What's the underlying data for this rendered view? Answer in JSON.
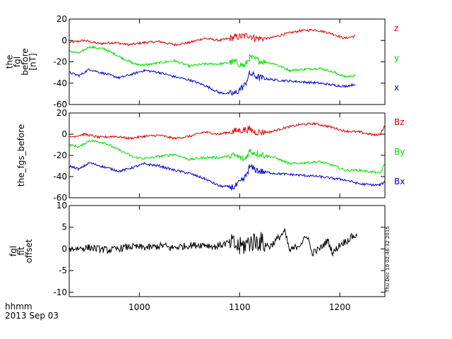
{
  "xaxis": {
    "xlim": [
      930,
      1245
    ],
    "tick_values": [
      1000,
      1100,
      1200
    ],
    "tick_labels": [
      "1000",
      "1100",
      "1200"
    ],
    "label_line1": "hhmm",
    "label_line2": "2013 Sep 03"
  },
  "timestamp": "Thu Dec 10 02:46:32 2015",
  "colors": {
    "x": "#0000cc",
    "y": "#00dd00",
    "z": "#dd0000",
    "black": "#000000"
  },
  "chart_data": [
    {
      "type": "line",
      "ylabel_lines": [
        "the",
        "fgl",
        "before",
        "[nT]"
      ],
      "ylim": [
        -60,
        20
      ],
      "y_ticks": [
        -60,
        -40,
        -20,
        0,
        20
      ],
      "y_tick_labels": [
        "-60",
        "-40",
        "-20",
        "0",
        "20"
      ],
      "series": [
        {
          "name": "z",
          "color": "#dd0000",
          "x": [
            930,
            945,
            960,
            975,
            990,
            1005,
            1020,
            1035,
            1050,
            1065,
            1080,
            1095,
            1105,
            1110,
            1115,
            1130,
            1145,
            1160,
            1175,
            1190,
            1205,
            1215
          ],
          "y": [
            -2,
            0,
            -3,
            -2,
            -4,
            -2,
            -1,
            -4,
            -2,
            2,
            0,
            3,
            4,
            5,
            2,
            2,
            6,
            9,
            10,
            7,
            2,
            4
          ]
        },
        {
          "name": "y",
          "color": "#00dd00",
          "x": [
            930,
            940,
            950,
            965,
            980,
            995,
            1005,
            1020,
            1035,
            1050,
            1065,
            1080,
            1095,
            1105,
            1110,
            1120,
            1135,
            1150,
            1165,
            1180,
            1195,
            1205,
            1215
          ],
          "y": [
            -10,
            -12,
            -6,
            -8,
            -15,
            -22,
            -23,
            -21,
            -19,
            -24,
            -22,
            -22,
            -20,
            -24,
            -16,
            -19,
            -22,
            -28,
            -27,
            -26,
            -30,
            -34,
            -33
          ]
        },
        {
          "name": "x",
          "color": "#0000cc",
          "x": [
            930,
            940,
            950,
            965,
            980,
            995,
            1005,
            1020,
            1035,
            1050,
            1065,
            1080,
            1095,
            1105,
            1110,
            1120,
            1135,
            1150,
            1165,
            1180,
            1195,
            1205,
            1215
          ],
          "y": [
            -30,
            -33,
            -27,
            -31,
            -35,
            -31,
            -28,
            -30,
            -34,
            -37,
            -42,
            -49,
            -50,
            -42,
            -31,
            -35,
            -37,
            -38,
            -39,
            -40,
            -42,
            -43,
            -41
          ]
        }
      ]
    },
    {
      "type": "line",
      "ylabel_lines": [
        "the_fgs_before"
      ],
      "ylim": [
        -60,
        20
      ],
      "y_ticks": [
        -60,
        -40,
        -20,
        0,
        20
      ],
      "y_tick_labels": [
        "-60",
        "-40",
        "-20",
        "0",
        "20"
      ],
      "series": [
        {
          "name": "Bz",
          "color": "#dd0000",
          "x": [
            930,
            945,
            960,
            975,
            990,
            1005,
            1020,
            1035,
            1050,
            1065,
            1080,
            1095,
            1105,
            1110,
            1115,
            1130,
            1145,
            1160,
            1175,
            1190,
            1205,
            1220,
            1235,
            1240,
            1245
          ],
          "y": [
            -3,
            0,
            -3,
            -2,
            -4,
            -2,
            -1,
            -4,
            -2,
            2,
            0,
            3,
            4,
            5,
            2,
            2,
            6,
            9,
            10,
            7,
            3,
            2,
            -1,
            0,
            8
          ]
        },
        {
          "name": "By",
          "color": "#00dd00",
          "x": [
            930,
            940,
            950,
            965,
            980,
            995,
            1005,
            1020,
            1035,
            1050,
            1065,
            1080,
            1095,
            1105,
            1110,
            1120,
            1135,
            1150,
            1165,
            1180,
            1195,
            1205,
            1220,
            1235,
            1240,
            1245
          ],
          "y": [
            -10,
            -12,
            -6,
            -8,
            -15,
            -22,
            -23,
            -21,
            -19,
            -24,
            -22,
            -22,
            -20,
            -24,
            -16,
            -19,
            -22,
            -28,
            -27,
            -26,
            -30,
            -34,
            -34,
            -36,
            -37,
            -28
          ]
        },
        {
          "name": "Bx",
          "color": "#0000cc",
          "x": [
            930,
            940,
            950,
            965,
            980,
            995,
            1005,
            1020,
            1035,
            1050,
            1065,
            1080,
            1095,
            1105,
            1110,
            1120,
            1135,
            1150,
            1165,
            1180,
            1195,
            1205,
            1220,
            1235,
            1240,
            1245
          ],
          "y": [
            -30,
            -33,
            -27,
            -31,
            -35,
            -31,
            -28,
            -30,
            -34,
            -37,
            -42,
            -49,
            -50,
            -42,
            -31,
            -35,
            -37,
            -38,
            -39,
            -40,
            -42,
            -43,
            -47,
            -48,
            -48,
            -45
          ]
        }
      ]
    },
    {
      "type": "line",
      "ylabel_lines": [
        "fgl",
        "fit",
        "offset"
      ],
      "ylim": [
        -11,
        10
      ],
      "y_ticks": [
        -10,
        -5,
        0,
        5,
        10
      ],
      "y_tick_labels": [
        "-10",
        "-5",
        "0",
        "5",
        "10"
      ],
      "series": [
        {
          "color": "#000000",
          "x": [
            930,
            950,
            970,
            990,
            1010,
            1025,
            1030,
            1050,
            1065,
            1075,
            1090,
            1100,
            1110,
            1120,
            1130,
            1145,
            1150,
            1160,
            1168,
            1172,
            1180,
            1188,
            1193,
            1200,
            1208,
            1213,
            1217
          ],
          "y": [
            0,
            0.3,
            -0.3,
            0.5,
            0.3,
            0.8,
            0.2,
            0.8,
            1,
            0.5,
            1.5,
            0.3,
            1.5,
            1.8,
            0.5,
            4,
            -0.5,
            1,
            3,
            -1,
            0,
            2,
            -1,
            1,
            2,
            3,
            3
          ]
        }
      ]
    }
  ]
}
